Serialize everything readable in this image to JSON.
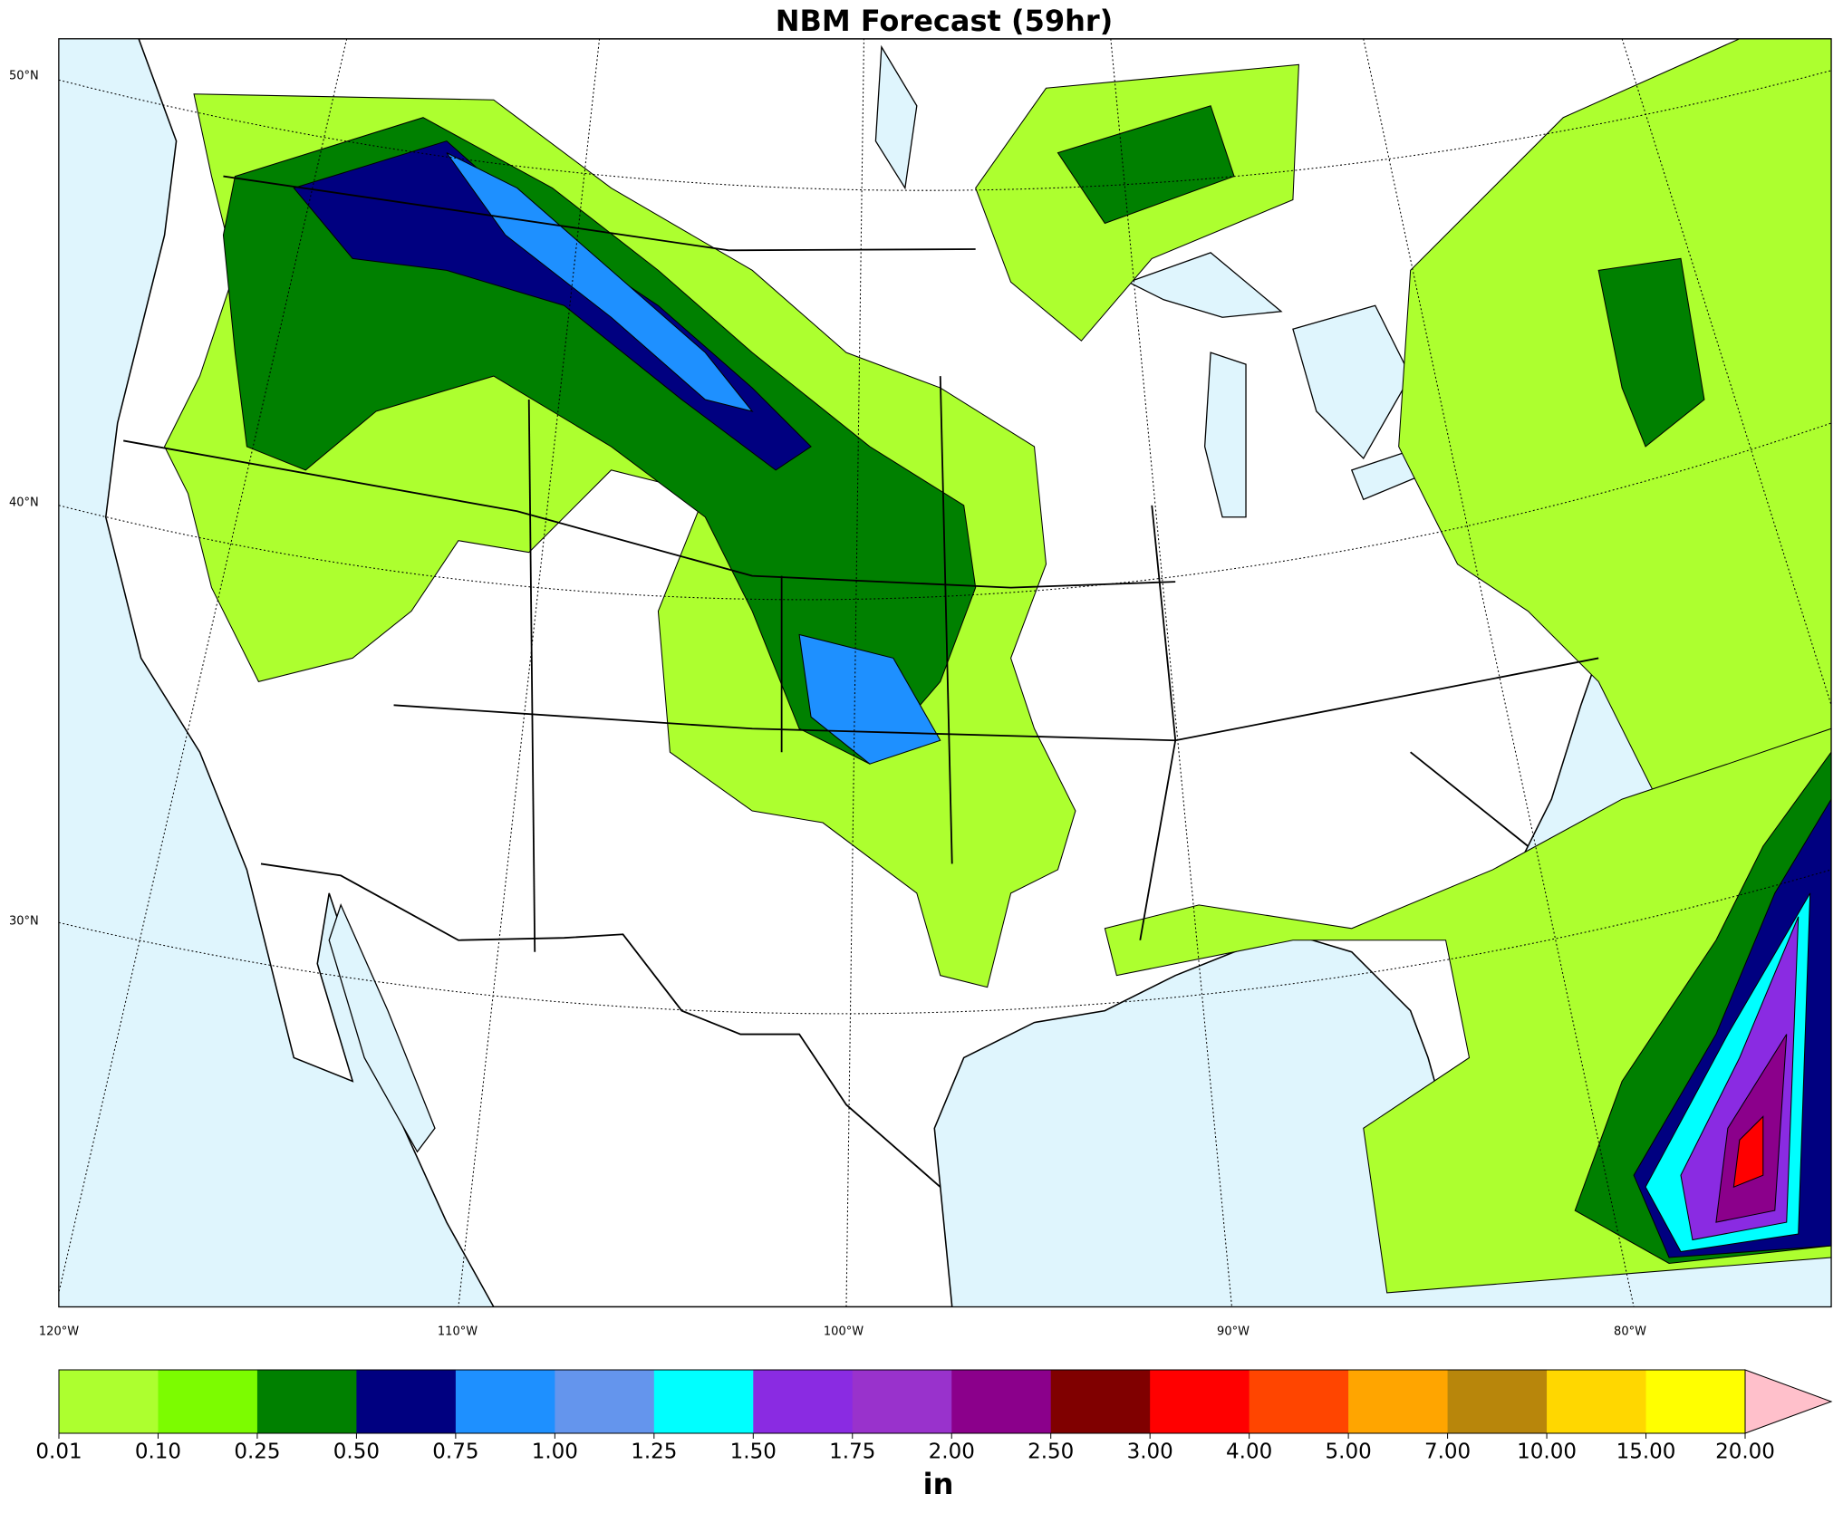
{
  "title": "NBM Forecast (59hr)",
  "map": {
    "lat_labels": [
      "50°N",
      "40°N",
      "30°N"
    ],
    "lon_labels": [
      "120°W",
      "110°W",
      "100°W",
      "90°W",
      "80°W"
    ]
  },
  "colorbar": {
    "label": "in",
    "ticks": [
      0.01,
      {
        "value": 0.1,
        "label": "0.10"
      },
      {
        "value": 0.25,
        "label": "0.25"
      },
      {
        "value": 0.5,
        "label": "0.50"
      },
      {
        "value": 0.75,
        "label": "0.75"
      },
      {
        "value": 1,
        "label": "1.00"
      },
      {
        "value": 1.25,
        "label": "1.25"
      },
      {
        "value": 1.5,
        "label": "1.50"
      },
      {
        "value": 1.75,
        "label": "1.75"
      },
      {
        "value": 2,
        "label": "2.00"
      },
      {
        "value": 2.5,
        "label": "2.50"
      },
      {
        "value": 3,
        "label": "3.00"
      },
      {
        "value": 4,
        "label": "4.00"
      },
      {
        "value": 5,
        "label": "5.00"
      },
      {
        "value": 7,
        "label": "7.00"
      },
      {
        "value": 10,
        "label": "10.00"
      },
      {
        "value": 15,
        "label": "15.00"
      },
      {
        "value": 20,
        "label": "20.00"
      }
    ],
    "colors": [
      "#adff2f",
      "#7cfc00",
      "#008000",
      "#000080",
      "#1e90ff",
      "#6495ed",
      "#00ffff",
      "#8a2be2",
      "#9932cc",
      "#8b008b",
      "#800000",
      "#ff0000",
      "#ff4500",
      "#ffa500",
      "#b8860b",
      "#ffd700",
      "#ffff00"
    ],
    "extend_color": "#ffc0cb"
  }
}
